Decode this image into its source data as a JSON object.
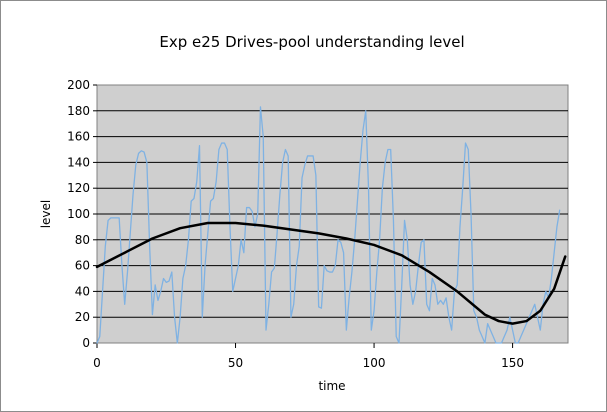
{
  "chart_data": {
    "type": "line",
    "title": "Exp e25 Drives-pool understanding level",
    "xlabel": "time",
    "ylabel": "level",
    "xlim": [
      0,
      170
    ],
    "ylim": [
      0,
      200
    ],
    "x_ticks": [
      0,
      50,
      100,
      150
    ],
    "y_ticks": [
      0,
      20,
      40,
      60,
      80,
      100,
      120,
      140,
      160,
      180,
      200
    ],
    "grid": "horizontal",
    "legend": "none",
    "plot_background": "#cfcfcf",
    "series": [
      {
        "color": "#7fb2e3",
        "points": [
          [
            0,
            0
          ],
          [
            1,
            5
          ],
          [
            2,
            40
          ],
          [
            3,
            75
          ],
          [
            4,
            95
          ],
          [
            5,
            97
          ],
          [
            6,
            97
          ],
          [
            7,
            97
          ],
          [
            8,
            97
          ],
          [
            9,
            60
          ],
          [
            10,
            30
          ],
          [
            11,
            55
          ],
          [
            12,
            85
          ],
          [
            13,
            115
          ],
          [
            14,
            138
          ],
          [
            15,
            147
          ],
          [
            16,
            149
          ],
          [
            17,
            148
          ],
          [
            18,
            140
          ],
          [
            19,
            75
          ],
          [
            20,
            22
          ],
          [
            21,
            45
          ],
          [
            22,
            33
          ],
          [
            23,
            40
          ],
          [
            24,
            50
          ],
          [
            25,
            47
          ],
          [
            26,
            48
          ],
          [
            27,
            55
          ],
          [
            28,
            20
          ],
          [
            29,
            0
          ],
          [
            30,
            20
          ],
          [
            31,
            50
          ],
          [
            32,
            60
          ],
          [
            33,
            80
          ],
          [
            34,
            110
          ],
          [
            35,
            112
          ],
          [
            36,
            125
          ],
          [
            37,
            153
          ],
          [
            38,
            20
          ],
          [
            39,
            60
          ],
          [
            40,
            85
          ],
          [
            41,
            110
          ],
          [
            42,
            112
          ],
          [
            43,
            125
          ],
          [
            44,
            150
          ],
          [
            45,
            155
          ],
          [
            46,
            155
          ],
          [
            47,
            150
          ],
          [
            48,
            90
          ],
          [
            49,
            40
          ],
          [
            50,
            50
          ],
          [
            51,
            60
          ],
          [
            52,
            80
          ],
          [
            53,
            70
          ],
          [
            54,
            105
          ],
          [
            55,
            105
          ],
          [
            56,
            102
          ],
          [
            57,
            90
          ],
          [
            58,
            100
          ],
          [
            59,
            183
          ],
          [
            60,
            160
          ],
          [
            61,
            10
          ],
          [
            62,
            30
          ],
          [
            63,
            55
          ],
          [
            64,
            58
          ],
          [
            65,
            85
          ],
          [
            66,
            115
          ],
          [
            67,
            140
          ],
          [
            68,
            150
          ],
          [
            69,
            145
          ],
          [
            70,
            20
          ],
          [
            71,
            30
          ],
          [
            72,
            60
          ],
          [
            73,
            75
          ],
          [
            74,
            128
          ],
          [
            75,
            138
          ],
          [
            76,
            145
          ],
          [
            77,
            145
          ],
          [
            78,
            145
          ],
          [
            79,
            130
          ],
          [
            80,
            28
          ],
          [
            81,
            27
          ],
          [
            82,
            60
          ],
          [
            83,
            56
          ],
          [
            84,
            55
          ],
          [
            85,
            55
          ],
          [
            86,
            60
          ],
          [
            87,
            80
          ],
          [
            88,
            78
          ],
          [
            89,
            70
          ],
          [
            90,
            10
          ],
          [
            91,
            35
          ],
          [
            92,
            55
          ],
          [
            93,
            80
          ],
          [
            94,
            110
          ],
          [
            95,
            140
          ],
          [
            96,
            165
          ],
          [
            97,
            180
          ],
          [
            98,
            120
          ],
          [
            99,
            10
          ],
          [
            100,
            25
          ],
          [
            101,
            55
          ],
          [
            102,
            80
          ],
          [
            103,
            120
          ],
          [
            104,
            140
          ],
          [
            105,
            150
          ],
          [
            106,
            150
          ],
          [
            107,
            95
          ],
          [
            108,
            5
          ],
          [
            109,
            0
          ],
          [
            110,
            45
          ],
          [
            111,
            95
          ],
          [
            112,
            80
          ],
          [
            113,
            45
          ],
          [
            114,
            30
          ],
          [
            115,
            40
          ],
          [
            116,
            60
          ],
          [
            117,
            78
          ],
          [
            118,
            80
          ],
          [
            119,
            30
          ],
          [
            120,
            25
          ],
          [
            121,
            50
          ],
          [
            122,
            45
          ],
          [
            123,
            30
          ],
          [
            124,
            33
          ],
          [
            125,
            30
          ],
          [
            126,
            35
          ],
          [
            127,
            20
          ],
          [
            128,
            10
          ],
          [
            129,
            40
          ],
          [
            130,
            45
          ],
          [
            131,
            90
          ],
          [
            132,
            120
          ],
          [
            133,
            155
          ],
          [
            134,
            150
          ],
          [
            135,
            100
          ],
          [
            136,
            25
          ],
          [
            137,
            20
          ],
          [
            138,
            10
          ],
          [
            139,
            5
          ],
          [
            140,
            0
          ],
          [
            141,
            15
          ],
          [
            142,
            10
          ],
          [
            143,
            5
          ],
          [
            144,
            0
          ],
          [
            145,
            0
          ],
          [
            146,
            0
          ],
          [
            147,
            5
          ],
          [
            148,
            10
          ],
          [
            149,
            20
          ],
          [
            150,
            10
          ],
          [
            151,
            0
          ],
          [
            152,
            0
          ],
          [
            153,
            5
          ],
          [
            154,
            10
          ],
          [
            155,
            15
          ],
          [
            156,
            20
          ],
          [
            157,
            25
          ],
          [
            158,
            30
          ],
          [
            159,
            20
          ],
          [
            160,
            10
          ],
          [
            161,
            30
          ],
          [
            162,
            40
          ],
          [
            163,
            35
          ],
          [
            164,
            50
          ],
          [
            165,
            70
          ],
          [
            166,
            90
          ],
          [
            167,
            103
          ]
        ]
      },
      {
        "color": "#000000",
        "points": [
          [
            0,
            59
          ],
          [
            10,
            70
          ],
          [
            20,
            81
          ],
          [
            30,
            89
          ],
          [
            40,
            93
          ],
          [
            50,
            93
          ],
          [
            60,
            91
          ],
          [
            70,
            88
          ],
          [
            80,
            85
          ],
          [
            90,
            81
          ],
          [
            100,
            76
          ],
          [
            110,
            68
          ],
          [
            120,
            55
          ],
          [
            130,
            40
          ],
          [
            140,
            22
          ],
          [
            145,
            17
          ],
          [
            150,
            15
          ],
          [
            155,
            17
          ],
          [
            160,
            25
          ],
          [
            165,
            42
          ],
          [
            169,
            67
          ]
        ]
      }
    ]
  }
}
